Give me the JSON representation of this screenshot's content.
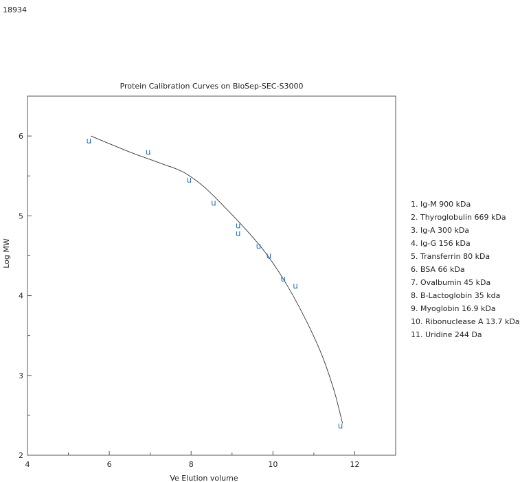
{
  "page_label": "18934",
  "chart_data": {
    "type": "scatter",
    "title": "Protein Calibration Curves on BioSep-SEC-S3000",
    "xlabel": "Ve Elution volume",
    "ylabel": "Log MW",
    "xlim": [
      4,
      13
    ],
    "ylim": [
      2,
      6.5
    ],
    "x_ticks": [
      4,
      6,
      8,
      10,
      12
    ],
    "y_ticks": [
      2,
      3,
      4,
      5,
      6
    ],
    "grid": false,
    "marker_symbol": "u",
    "marker_color": "#1f6fb5",
    "curve_color": "#333333",
    "points": [
      {
        "x": 5.5,
        "y": 5.94
      },
      {
        "x": 6.95,
        "y": 5.8
      },
      {
        "x": 7.95,
        "y": 5.45
      },
      {
        "x": 8.55,
        "y": 5.16
      },
      {
        "x": 9.15,
        "y": 4.88
      },
      {
        "x": 9.15,
        "y": 4.78
      },
      {
        "x": 9.65,
        "y": 4.62
      },
      {
        "x": 9.9,
        "y": 4.5
      },
      {
        "x": 10.25,
        "y": 4.21
      },
      {
        "x": 10.55,
        "y": 4.12
      },
      {
        "x": 11.65,
        "y": 2.37
      }
    ],
    "curve": [
      {
        "x": 5.55,
        "y": 6.0
      },
      {
        "x": 6.5,
        "y": 5.8
      },
      {
        "x": 7.3,
        "y": 5.65
      },
      {
        "x": 7.8,
        "y": 5.55
      },
      {
        "x": 8.3,
        "y": 5.37
      },
      {
        "x": 8.8,
        "y": 5.12
      },
      {
        "x": 9.3,
        "y": 4.85
      },
      {
        "x": 9.8,
        "y": 4.55
      },
      {
        "x": 10.3,
        "y": 4.17
      },
      {
        "x": 10.8,
        "y": 3.7
      },
      {
        "x": 11.2,
        "y": 3.25
      },
      {
        "x": 11.5,
        "y": 2.8
      },
      {
        "x": 11.7,
        "y": 2.4
      }
    ],
    "legend": [
      "1. Ig-M 900 kDa",
      "2. Thyroglobulin 669 kDa",
      "3. Ig-A 300 kDa",
      "4. Ig-G 156 kDa",
      "5. Transferrin 80 kDa",
      "6. BSA 66 kDa",
      "7. Ovalbumin 45 kDa",
      "8. B-Lactoglobin 35 kda",
      "9. Myoglobin 16.9 kDa",
      "10. Ribonuclease A 13.7 kDa",
      "11. Uridine 244 Da"
    ]
  }
}
